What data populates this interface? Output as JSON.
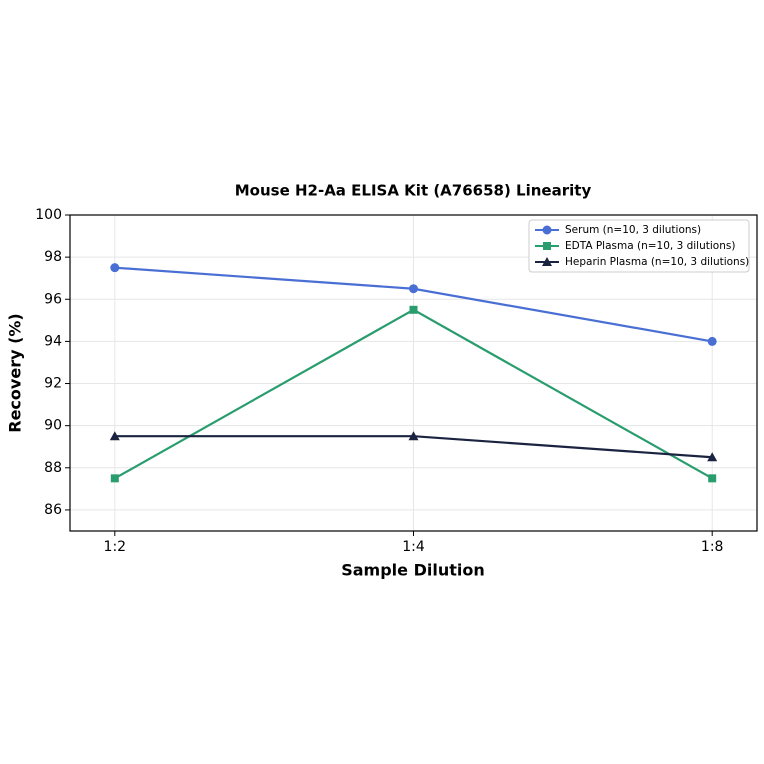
{
  "chart_data": {
    "type": "line",
    "title": "Mouse H2-Aa ELISA Kit (A76658) Linearity",
    "x_label": "Sample Dilution",
    "y_label": "Recovery (%)",
    "categories": [
      "1:2",
      "1:4",
      "1:8"
    ],
    "series": [
      {
        "name": "Serum (n=10, 3 dilutions)",
        "color": "#4a6fd4",
        "marker": "circle",
        "values": [
          97.5,
          96.5,
          94
        ]
      },
      {
        "name": "EDTA Plasma (n=10, 3 dilutions)",
        "color": "#2a9d6f",
        "marker": "square",
        "values": [
          87.5,
          95.5,
          87.5
        ]
      },
      {
        "name": "Heparin Plasma (n=10, 3 dilutions)",
        "color": "#1a2340",
        "marker": "triangle",
        "values": [
          89.5,
          89.5,
          88.5
        ]
      }
    ],
    "ylim": [
      85,
      100
    ],
    "yticks": [
      86,
      88,
      90,
      92,
      94,
      96,
      98,
      100
    ],
    "grid": true,
    "legend": "upper right"
  }
}
